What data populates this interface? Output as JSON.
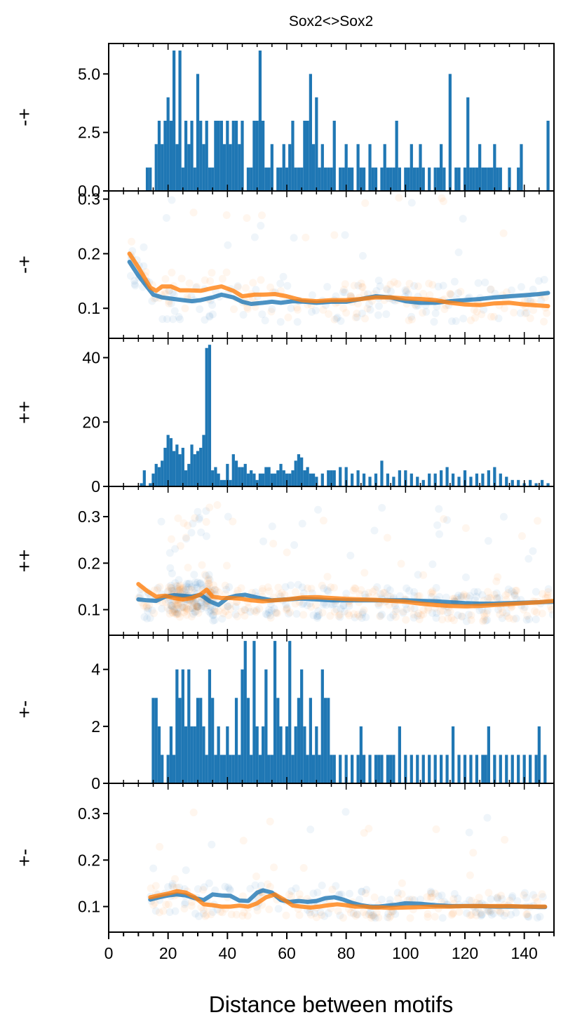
{
  "figure": {
    "title": "Sox2<>Sox2",
    "xlabel": "Distance between motifs",
    "xlim": [
      0,
      150
    ],
    "xticks": [
      0,
      20,
      40,
      60,
      80,
      100,
      120,
      140
    ],
    "colors": {
      "bar": "#1f77b4",
      "blue": "#1f77b4",
      "orange": "#ff7f0e",
      "axis": "#000000"
    }
  },
  "chart_data": [
    {
      "type": "bar",
      "ylabel": "-+",
      "ylim": [
        0,
        6.3
      ],
      "yticks": [
        "0.0",
        "2.5",
        "5.0"
      ],
      "ytick_values": [
        0,
        2.5,
        5.0
      ],
      "x": [
        13,
        14,
        16,
        17,
        18,
        19,
        20,
        21,
        22,
        23,
        24,
        25,
        26,
        27,
        28,
        29,
        30,
        31,
        32,
        33,
        34,
        35,
        36,
        37,
        38,
        39,
        40,
        41,
        42,
        43,
        44,
        45,
        47,
        48,
        49,
        50,
        51,
        52,
        53,
        54,
        55,
        57,
        58,
        59,
        60,
        61,
        62,
        63,
        64,
        65,
        66,
        67,
        68,
        69,
        70,
        71,
        72,
        73,
        74,
        75,
        76,
        78,
        79,
        80,
        81,
        82,
        84,
        85,
        86,
        88,
        89,
        90,
        92,
        93,
        94,
        95,
        96,
        97,
        98,
        100,
        101,
        102,
        103,
        104,
        105,
        106,
        108,
        110,
        111,
        112,
        113,
        115,
        117,
        118,
        120,
        121,
        122,
        123,
        124,
        125,
        126,
        127,
        128,
        129,
        130,
        131,
        132,
        135,
        138,
        139,
        148
      ],
      "values": [
        1,
        1,
        2,
        3,
        2,
        3,
        4,
        3,
        6,
        2,
        6,
        1,
        3,
        2,
        3,
        1,
        5,
        3,
        2,
        3,
        1,
        1,
        3,
        3,
        3,
        2,
        3,
        2,
        3,
        3,
        2,
        3,
        1,
        1,
        3,
        3,
        6,
        3,
        1,
        1,
        2,
        1,
        1,
        2,
        1,
        2,
        3,
        1,
        1,
        1,
        3,
        3,
        5,
        2,
        4,
        1,
        2,
        1,
        1,
        1,
        3,
        1,
        1,
        2,
        1,
        1,
        2,
        1,
        1,
        2,
        1,
        1,
        1,
        2,
        1,
        1,
        1,
        3,
        1,
        1,
        1,
        2,
        1,
        1,
        2,
        1,
        1,
        1,
        1,
        2,
        1,
        5,
        1,
        1,
        1,
        4,
        1,
        1,
        1,
        2,
        1,
        1,
        1,
        1,
        2,
        1,
        1,
        1,
        1,
        2,
        3
      ]
    },
    {
      "type": "scatter",
      "ylabel": "-+",
      "ylim": [
        0.045,
        0.315
      ],
      "yticks": [
        "0.1",
        "0.2",
        "0.3"
      ],
      "ytick_values": [
        0.1,
        0.2,
        0.3
      ],
      "series": [
        {
          "x": [
            7,
            10,
            15,
            18,
            22,
            25,
            28,
            31,
            35,
            38,
            42,
            45,
            48,
            52,
            55,
            58,
            62,
            66,
            70,
            75,
            80,
            85,
            90,
            95,
            100,
            105,
            110,
            115,
            120,
            125,
            130,
            135,
            140,
            145,
            148
          ],
          "y": [
            0.185,
            0.16,
            0.125,
            0.12,
            0.117,
            0.115,
            0.113,
            0.115,
            0.12,
            0.125,
            0.12,
            0.112,
            0.108,
            0.11,
            0.112,
            0.11,
            0.113,
            0.112,
            0.11,
            0.112,
            0.112,
            0.117,
            0.122,
            0.12,
            0.113,
            0.11,
            0.11,
            0.113,
            0.115,
            0.117,
            0.12,
            0.122,
            0.124,
            0.126,
            0.128
          ]
        },
        {
          "x": [
            7,
            10,
            14,
            16,
            18,
            21,
            24,
            27,
            31,
            35,
            38,
            42,
            45,
            49,
            52,
            56,
            60,
            65,
            70,
            75,
            80,
            85,
            90,
            95,
            100,
            105,
            110,
            115,
            120,
            125,
            130,
            135,
            140,
            145,
            148
          ],
          "y": [
            0.2,
            0.175,
            0.138,
            0.132,
            0.14,
            0.14,
            0.133,
            0.133,
            0.132,
            0.137,
            0.14,
            0.132,
            0.122,
            0.125,
            0.125,
            0.126,
            0.122,
            0.115,
            0.113,
            0.115,
            0.115,
            0.117,
            0.12,
            0.12,
            0.118,
            0.117,
            0.115,
            0.11,
            0.107,
            0.106,
            0.109,
            0.11,
            0.107,
            0.105,
            0.104
          ]
        }
      ]
    },
    {
      "type": "bar",
      "ylabel": "++",
      "ylim": [
        0,
        46
      ],
      "yticks": [
        "0",
        "20",
        "40"
      ],
      "ytick_values": [
        0,
        20,
        40
      ],
      "x": [
        11,
        12,
        14,
        15,
        16,
        17,
        18,
        19,
        20,
        21,
        22,
        23,
        24,
        25,
        26,
        27,
        28,
        29,
        30,
        31,
        32,
        33,
        34,
        35,
        36,
        37,
        38,
        39,
        40,
        41,
        42,
        43,
        44,
        45,
        46,
        47,
        48,
        49,
        50,
        51,
        52,
        53,
        54,
        55,
        56,
        57,
        58,
        59,
        60,
        61,
        62,
        63,
        64,
        65,
        66,
        67,
        68,
        69,
        70,
        72,
        74,
        75,
        76,
        78,
        80,
        82,
        84,
        86,
        88,
        90,
        92,
        94,
        96,
        98,
        100,
        102,
        104,
        106,
        108,
        110,
        112,
        114,
        116,
        118,
        120,
        122,
        124,
        126,
        128,
        130,
        132,
        134,
        136,
        138,
        140,
        142,
        144,
        146,
        148
      ],
      "values": [
        1,
        5,
        1,
        4,
        7,
        6,
        8,
        12,
        16,
        15,
        11,
        13,
        10,
        12,
        5,
        7,
        13,
        10,
        11,
        12,
        16,
        43,
        44,
        5,
        6,
        4,
        2,
        2,
        7,
        2,
        10,
        8,
        6,
        6,
        7,
        4,
        5,
        4,
        2,
        4,
        4,
        6,
        6,
        4,
        4,
        5,
        7,
        5,
        4,
        4,
        5,
        8,
        10,
        9,
        5,
        6,
        4,
        4,
        3,
        4,
        5,
        5,
        5,
        6,
        6,
        4,
        5,
        4,
        3,
        4,
        8,
        4,
        3,
        5,
        5,
        4,
        3,
        2,
        4,
        4,
        5,
        6,
        4,
        3,
        5,
        3,
        4,
        4,
        5,
        6,
        4,
        3,
        2,
        2,
        1,
        2,
        1,
        2,
        1
      ]
    },
    {
      "type": "scatter",
      "ylabel": "++",
      "ylim": [
        0.045,
        0.365
      ],
      "yticks": [
        "0.1",
        "0.2",
        "0.3"
      ],
      "ytick_values": [
        0.1,
        0.2,
        0.3
      ],
      "series": [
        {
          "x": [
            10,
            13,
            16,
            19,
            22,
            25,
            28,
            31,
            34,
            37,
            40,
            43,
            46,
            50,
            55,
            60,
            65,
            70,
            75,
            80,
            85,
            90,
            95,
            100,
            105,
            110,
            115,
            120,
            125,
            130,
            135,
            140,
            145,
            150
          ],
          "y": [
            0.122,
            0.12,
            0.119,
            0.128,
            0.131,
            0.13,
            0.128,
            0.132,
            0.118,
            0.11,
            0.125,
            0.13,
            0.132,
            0.126,
            0.12,
            0.122,
            0.124,
            0.122,
            0.12,
            0.12,
            0.12,
            0.12,
            0.12,
            0.12,
            0.119,
            0.118,
            0.116,
            0.114,
            0.113,
            0.113,
            0.114,
            0.115,
            0.116,
            0.117
          ]
        },
        {
          "x": [
            10,
            13,
            16,
            19,
            22,
            25,
            28,
            31,
            33,
            35,
            38,
            41,
            44,
            48,
            52,
            56,
            60,
            65,
            70,
            75,
            80,
            85,
            90,
            95,
            100,
            105,
            110,
            115,
            120,
            125,
            130,
            135,
            140,
            145,
            150
          ],
          "y": [
            0.155,
            0.14,
            0.128,
            0.13,
            0.125,
            0.122,
            0.125,
            0.133,
            0.143,
            0.128,
            0.125,
            0.125,
            0.124,
            0.12,
            0.118,
            0.12,
            0.122,
            0.126,
            0.127,
            0.125,
            0.123,
            0.122,
            0.121,
            0.119,
            0.117,
            0.113,
            0.11,
            0.108,
            0.107,
            0.108,
            0.11,
            0.112,
            0.114,
            0.116,
            0.119
          ]
        }
      ]
    },
    {
      "type": "bar",
      "ylabel": "+-",
      "ylim": [
        0,
        5.2
      ],
      "yticks": [
        "0",
        "2",
        "4"
      ],
      "ytick_values": [
        0,
        2,
        4
      ],
      "x": [
        15,
        16,
        17,
        18,
        20,
        21,
        22,
        23,
        24,
        25,
        26,
        27,
        28,
        29,
        30,
        31,
        32,
        33,
        34,
        35,
        36,
        37,
        38,
        39,
        40,
        41,
        42,
        43,
        44,
        45,
        46,
        47,
        48,
        49,
        50,
        51,
        52,
        53,
        54,
        55,
        56,
        57,
        58,
        59,
        60,
        61,
        62,
        63,
        64,
        65,
        66,
        67,
        68,
        69,
        70,
        71,
        72,
        73,
        74,
        75,
        76,
        78,
        80,
        82,
        84,
        85,
        86,
        88,
        90,
        91,
        92,
        94,
        95,
        96,
        98,
        100,
        102,
        104,
        106,
        108,
        110,
        112,
        114,
        116,
        118,
        120,
        122,
        124,
        126,
        127,
        128,
        130,
        132,
        134,
        136,
        138,
        140,
        142,
        144,
        145,
        147
      ],
      "values": [
        3,
        3,
        2,
        1,
        1,
        2,
        1,
        4,
        3,
        4,
        2,
        4,
        2,
        2,
        3,
        3,
        2,
        1,
        4,
        3,
        1,
        2,
        1,
        1,
        2,
        1,
        1,
        3,
        1,
        4,
        5,
        3,
        1,
        5,
        2,
        1,
        2,
        4,
        1,
        1,
        5,
        3,
        2,
        1,
        2,
        5,
        1,
        2,
        3,
        4,
        2,
        1,
        3,
        1,
        2,
        1,
        4,
        3,
        3,
        1,
        1,
        1,
        1,
        1,
        1,
        2,
        1,
        1,
        1,
        1,
        1,
        1,
        1,
        1,
        2,
        1,
        1,
        1,
        1,
        1,
        1,
        1,
        1,
        2,
        1,
        1,
        1,
        1,
        1,
        1,
        2,
        1,
        1,
        1,
        1,
        1,
        1,
        1,
        1,
        2,
        1
      ]
    },
    {
      "type": "scatter",
      "ylabel": "+-",
      "ylim": [
        0.045,
        0.365
      ],
      "yticks": [
        "0.1",
        "0.2",
        "0.3"
      ],
      "ytick_values": [
        0.1,
        0.2,
        0.3
      ],
      "series": [
        {
          "x": [
            14,
            17,
            20,
            23,
            26,
            29,
            32,
            35,
            38,
            41,
            44,
            47,
            50,
            52,
            55,
            58,
            61,
            64,
            67,
            70,
            73,
            76,
            79,
            82,
            85,
            88,
            91,
            94,
            97,
            100,
            105,
            110,
            115,
            120,
            125,
            130,
            135,
            140,
            145,
            147
          ],
          "y": [
            0.115,
            0.12,
            0.124,
            0.126,
            0.124,
            0.118,
            0.114,
            0.126,
            0.124,
            0.123,
            0.113,
            0.112,
            0.13,
            0.135,
            0.13,
            0.114,
            0.11,
            0.112,
            0.11,
            0.112,
            0.118,
            0.12,
            0.115,
            0.108,
            0.103,
            0.1,
            0.1,
            0.102,
            0.104,
            0.107,
            0.106,
            0.103,
            0.101,
            0.101,
            0.101,
            0.1,
            0.1,
            0.1,
            0.099,
            0.099
          ]
        },
        {
          "x": [
            14,
            17,
            20,
            23,
            26,
            29,
            32,
            35,
            38,
            41,
            44,
            47,
            50,
            53,
            56,
            59,
            62,
            65,
            68,
            71,
            74,
            77,
            80,
            83,
            86,
            89,
            92,
            95,
            100,
            105,
            110,
            115,
            120,
            125,
            130,
            135,
            140,
            145,
            147
          ],
          "y": [
            0.12,
            0.124,
            0.128,
            0.133,
            0.13,
            0.12,
            0.105,
            0.103,
            0.1,
            0.1,
            0.102,
            0.1,
            0.107,
            0.12,
            0.126,
            0.115,
            0.102,
            0.1,
            0.098,
            0.1,
            0.103,
            0.105,
            0.103,
            0.1,
            0.1,
            0.098,
            0.098,
            0.097,
            0.098,
            0.099,
            0.1,
            0.1,
            0.101,
            0.101,
            0.101,
            0.101,
            0.1,
            0.1,
            0.1
          ]
        }
      ]
    }
  ]
}
